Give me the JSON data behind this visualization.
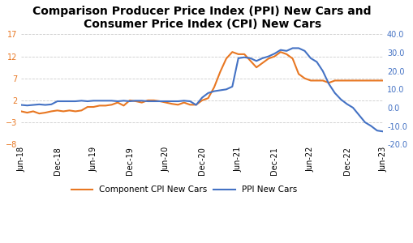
{
  "title": "Comparison Producer Price Index (PPI) New Cars and\nConsumer Price Index (CPI) New Cars",
  "title_fontsize": 10,
  "title_fontweight": "bold",
  "left_color": "#E87722",
  "right_color": "#4472C4",
  "left_ylim": [
    -8,
    17
  ],
  "right_ylim": [
    -20,
    40
  ],
  "left_yticks": [
    -8,
    -3,
    2,
    7,
    12,
    17
  ],
  "right_yticks": [
    -20.0,
    -10.0,
    0.0,
    10.0,
    20.0,
    30.0,
    40.0
  ],
  "x_labels": [
    "Jun-18",
    "Dec-18",
    "Jun-19",
    "Dec-19",
    "Jun-20",
    "Dec-20",
    "Jun-21",
    "Dec-21",
    "Jun-22",
    "Dec-22",
    "Jun-23"
  ],
  "legend_cpi": "Component CPI New Cars",
  "legend_ppi": "PPI New Cars",
  "background": "#FFFFFF",
  "grid_color": "#CCCCCC",
  "cpi_data": [
    -0.5,
    -0.8,
    -0.5,
    -1.0,
    -0.8,
    -0.5,
    -0.3,
    -0.5,
    -0.3,
    -0.5,
    -0.3,
    0.5,
    0.5,
    0.8,
    0.8,
    1.0,
    1.5,
    0.8,
    2.0,
    1.8,
    1.5,
    2.0,
    2.0,
    1.8,
    1.5,
    1.2,
    1.0,
    1.5,
    1.0,
    1.0,
    2.0,
    2.5,
    5.0,
    8.5,
    11.5,
    13.0,
    12.5,
    12.5,
    11.0,
    9.5,
    10.5,
    11.5,
    12.0,
    13.0,
    12.5,
    11.5,
    8.0,
    7.0,
    6.5,
    6.5,
    6.5,
    6.0,
    6.5,
    6.5,
    6.5,
    6.5,
    6.5,
    6.5,
    6.5,
    6.5,
    6.5
  ],
  "ppi_data": [
    1.5,
    1.2,
    1.5,
    1.8,
    1.5,
    1.8,
    3.5,
    3.5,
    3.5,
    3.5,
    3.8,
    3.5,
    3.8,
    3.8,
    3.8,
    3.8,
    3.5,
    3.8,
    3.5,
    3.8,
    3.8,
    3.5,
    3.5,
    3.5,
    3.5,
    3.5,
    3.5,
    3.8,
    3.5,
    1.5,
    5.5,
    8.0,
    9.0,
    9.5,
    10.0,
    11.5,
    27.0,
    27.5,
    27.0,
    25.5,
    27.0,
    28.0,
    29.5,
    31.5,
    31.0,
    32.5,
    32.5,
    31.0,
    27.0,
    25.0,
    20.0,
    13.0,
    8.0,
    4.5,
    2.0,
    0.0,
    -4.0,
    -8.0,
    -10.0,
    -12.5,
    -13.0
  ]
}
